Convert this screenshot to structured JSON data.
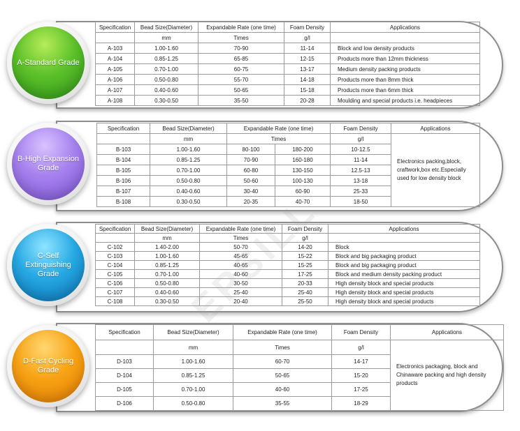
{
  "grades": {
    "a": {
      "name": "A-Standard Grade",
      "headers": [
        "Specification",
        "Bead Size(Diameter)",
        "Expandable Rate (one time)",
        "Foam Density",
        "Applications"
      ],
      "units": [
        "mm",
        "Times",
        "g/l"
      ],
      "rows": [
        {
          "spec": "A-103",
          "bead": "1.00-1.60",
          "rate": "70-90",
          "density": "11-14",
          "app": "Block and low density products"
        },
        {
          "spec": "A-104",
          "bead": "0.85-1.25",
          "rate": "65-85",
          "density": "12-15",
          "app": "Products more than 12mm thickness"
        },
        {
          "spec": "A-105",
          "bead": "0.70-1.00",
          "rate": "60-75",
          "density": "13-17",
          "app": "Medium density packing products"
        },
        {
          "spec": "A-106",
          "bead": "0.50-0.80",
          "rate": "55-70",
          "density": "14-18",
          "app": "Products more than 8mm thick"
        },
        {
          "spec": "A-107",
          "bead": "0.40-0.60",
          "rate": "50-65",
          "density": "15-18",
          "app": "Products more than 6mm thick"
        },
        {
          "spec": "A-108",
          "bead": "0.30-0.50",
          "rate": "35-50",
          "density": "20-28",
          "app": "Moulding and special products i.e. headpieces"
        }
      ]
    },
    "b": {
      "name": "B-High Expansion Grade",
      "headers": [
        "Specification",
        "Bead Size(Diameter)",
        "Expandable Rate (one time)",
        "Foam Density",
        "Applications"
      ],
      "units": [
        "mm",
        "Times",
        "g/l"
      ],
      "application": "Electronics packing,block, craftwork,box etc.Especially used for low density block",
      "rows": [
        {
          "spec": "B-103",
          "bead": "1.00-1.60",
          "rate1": "80-100",
          "rate2": "180-200",
          "density": "10-12.5"
        },
        {
          "spec": "B-104",
          "bead": "0.85-1.25",
          "rate1": "70-90",
          "rate2": "160-180",
          "density": "11-14"
        },
        {
          "spec": "B-105",
          "bead": "0.70-1.00",
          "rate1": "60-80",
          "rate2": "130-150",
          "density": "12.5-13"
        },
        {
          "spec": "B-106",
          "bead": "0.50-0.80",
          "rate1": "50-60",
          "rate2": "100-130",
          "density": "13-18"
        },
        {
          "spec": "B-107",
          "bead": "0.40-0.60",
          "rate1": "30-40",
          "rate2": "60-90",
          "density": "25-33"
        },
        {
          "spec": "B-108",
          "bead": "0.30-0.50",
          "rate1": "20-35",
          "rate2": "40-70",
          "density": "18-50"
        }
      ]
    },
    "c": {
      "name": "C-Self Extinguishing Grade",
      "headers": [
        "Specification",
        "Bead Size(Diameter)",
        "Expandable Rate (one time)",
        "Foam Density",
        "Applications"
      ],
      "units": [
        "mm",
        "Times",
        "g/l"
      ],
      "rows": [
        {
          "spec": "C-102",
          "bead": "1.40-2.00",
          "rate": "50-70",
          "density": "14-20",
          "app": "Block"
        },
        {
          "spec": "C-103",
          "bead": "1.00-1.60",
          "rate": "45-65",
          "density": "15-22",
          "app": "Block and big packaging product"
        },
        {
          "spec": "C-104",
          "bead": "0.85-1.25",
          "rate": "40-65",
          "density": "15-25",
          "app": "Block and big packaging product"
        },
        {
          "spec": "C-105",
          "bead": "0.70-1.00",
          "rate": "40-60",
          "density": "17-25",
          "app": "Block and medium density packing product"
        },
        {
          "spec": "C-106",
          "bead": "0.50-0.80",
          "rate": "30-50",
          "density": "20-33",
          "app": "High density block and special products"
        },
        {
          "spec": "C-107",
          "bead": "0.40-0.60",
          "rate": "25-40",
          "density": "25-40",
          "app": "High density block and special products"
        },
        {
          "spec": "C-108",
          "bead": "0.30-0.50",
          "rate": "20-40",
          "density": "25-50",
          "app": "High density block and special products"
        }
      ]
    },
    "d": {
      "name": "D-Fast Cycling Grade",
      "headers": [
        "Specification",
        "Bead Size(Diameter)",
        "Expandable Rate (one time)",
        "Foam Density",
        "Applications"
      ],
      "units": [
        "mm",
        "Times",
        "g/l"
      ],
      "application": "Electronics packaging, block and Chinaware packing and high density products",
      "rows": [
        {
          "spec": "D-103",
          "bead": "1.00-1.60",
          "rate": "60-70",
          "density": "14-17"
        },
        {
          "spec": "D-104",
          "bead": "0.85-1.25",
          "rate": "50-65",
          "density": "15-20"
        },
        {
          "spec": "D-105",
          "bead": "0.70-1.00",
          "rate": "40-60",
          "density": "17-25"
        },
        {
          "spec": "D-106",
          "bead": "0.50-0.80",
          "rate": "35-55",
          "density": "18-29"
        }
      ]
    }
  },
  "watermark": "EPSILL"
}
